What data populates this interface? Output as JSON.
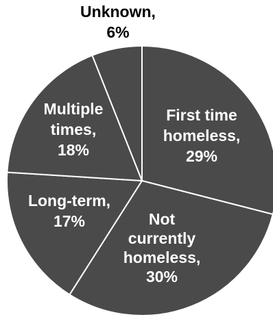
{
  "chart_data": {
    "type": "pie",
    "slices": [
      {
        "label": "First time homeless",
        "value": 29,
        "text_lines": [
          "First time",
          "homeless,",
          "29%"
        ]
      },
      {
        "label": "Not currently homeless",
        "value": 30,
        "text_lines": [
          "Not",
          "currently",
          "homeless,",
          "30%"
        ]
      },
      {
        "label": "Long-term",
        "value": 17,
        "text_lines": [
          "Long-term,",
          "17%"
        ]
      },
      {
        "label": "Multiple times",
        "value": 18,
        "text_lines": [
          "Multiple",
          "times,",
          "18%"
        ]
      },
      {
        "label": "Unknown",
        "value": 6,
        "text_lines": [
          "Unknown,",
          "6%"
        ]
      }
    ],
    "title": "",
    "legend": "none",
    "colors": {
      "slice_fill": "#4a4a4a",
      "slice_border": "#ffffff",
      "inside_text": "#ffffff",
      "outside_text": "#000000"
    }
  }
}
